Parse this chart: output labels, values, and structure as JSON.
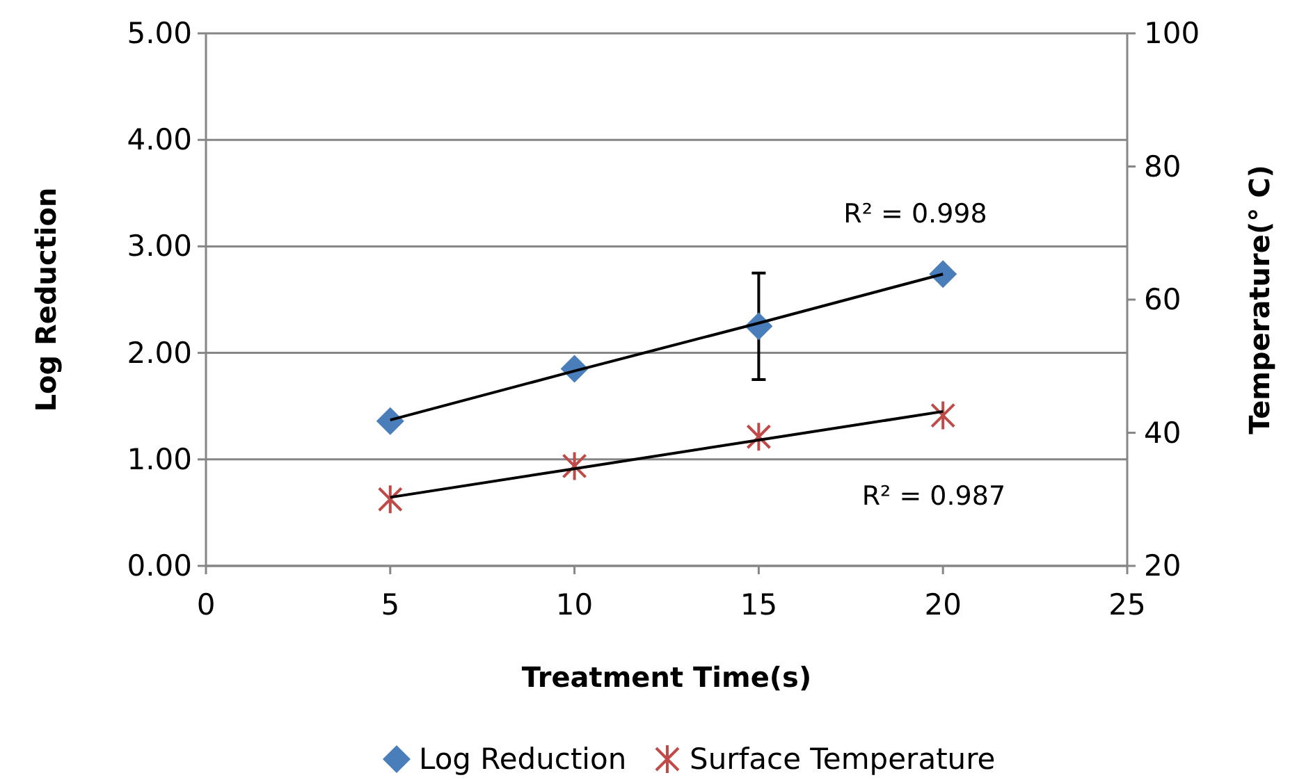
{
  "chart_data": {
    "type": "scatter",
    "xlabel": "Treatment Time(s)",
    "ylabel": "Log Reduction",
    "y2label": "Temperature(° C)",
    "x": [
      5,
      10,
      15,
      20
    ],
    "series": [
      {
        "name": "Log Reduction",
        "color": "#4a7ebb",
        "marker": "diamond",
        "values": [
          1.36,
          1.85,
          2.25,
          2.74
        ],
        "errors": [
          null,
          null,
          0.5,
          null
        ]
      },
      {
        "name": "Surface Temperature",
        "color": "#be4b48",
        "marker": "cross",
        "axis": "y2",
        "values": [
          30.0,
          35.0,
          39.4,
          42.6
        ]
      },
      {
        "type": "line",
        "color": "#000000",
        "marker": "none",
        "values": [
          1.37,
          1.83,
          2.28,
          2.74
        ]
      },
      {
        "type": "line",
        "color": "#000000",
        "marker": "none",
        "axis": "y2",
        "values": [
          30.3,
          34.6,
          38.9,
          43.2
        ]
      }
    ],
    "xlim": [
      0,
      25
    ],
    "xticks": [
      0,
      5,
      10,
      15,
      20,
      25
    ],
    "ylim": [
      0,
      5
    ],
    "yticks": [
      {
        "value": 0,
        "label": "0.00"
      },
      {
        "value": 1,
        "label": "1.00"
      },
      {
        "value": 2,
        "label": "2.00"
      },
      {
        "value": 3,
        "label": "3.00"
      },
      {
        "value": 4,
        "label": "4.00"
      },
      {
        "value": 5,
        "label": "5.00"
      }
    ],
    "y2lim": [
      20,
      100
    ],
    "y2ticks": [
      20,
      40,
      60,
      80,
      100
    ],
    "grid": "y",
    "legend": "bottom",
    "annotations": [
      "R² = 0.998",
      "R² = 0.987"
    ]
  }
}
